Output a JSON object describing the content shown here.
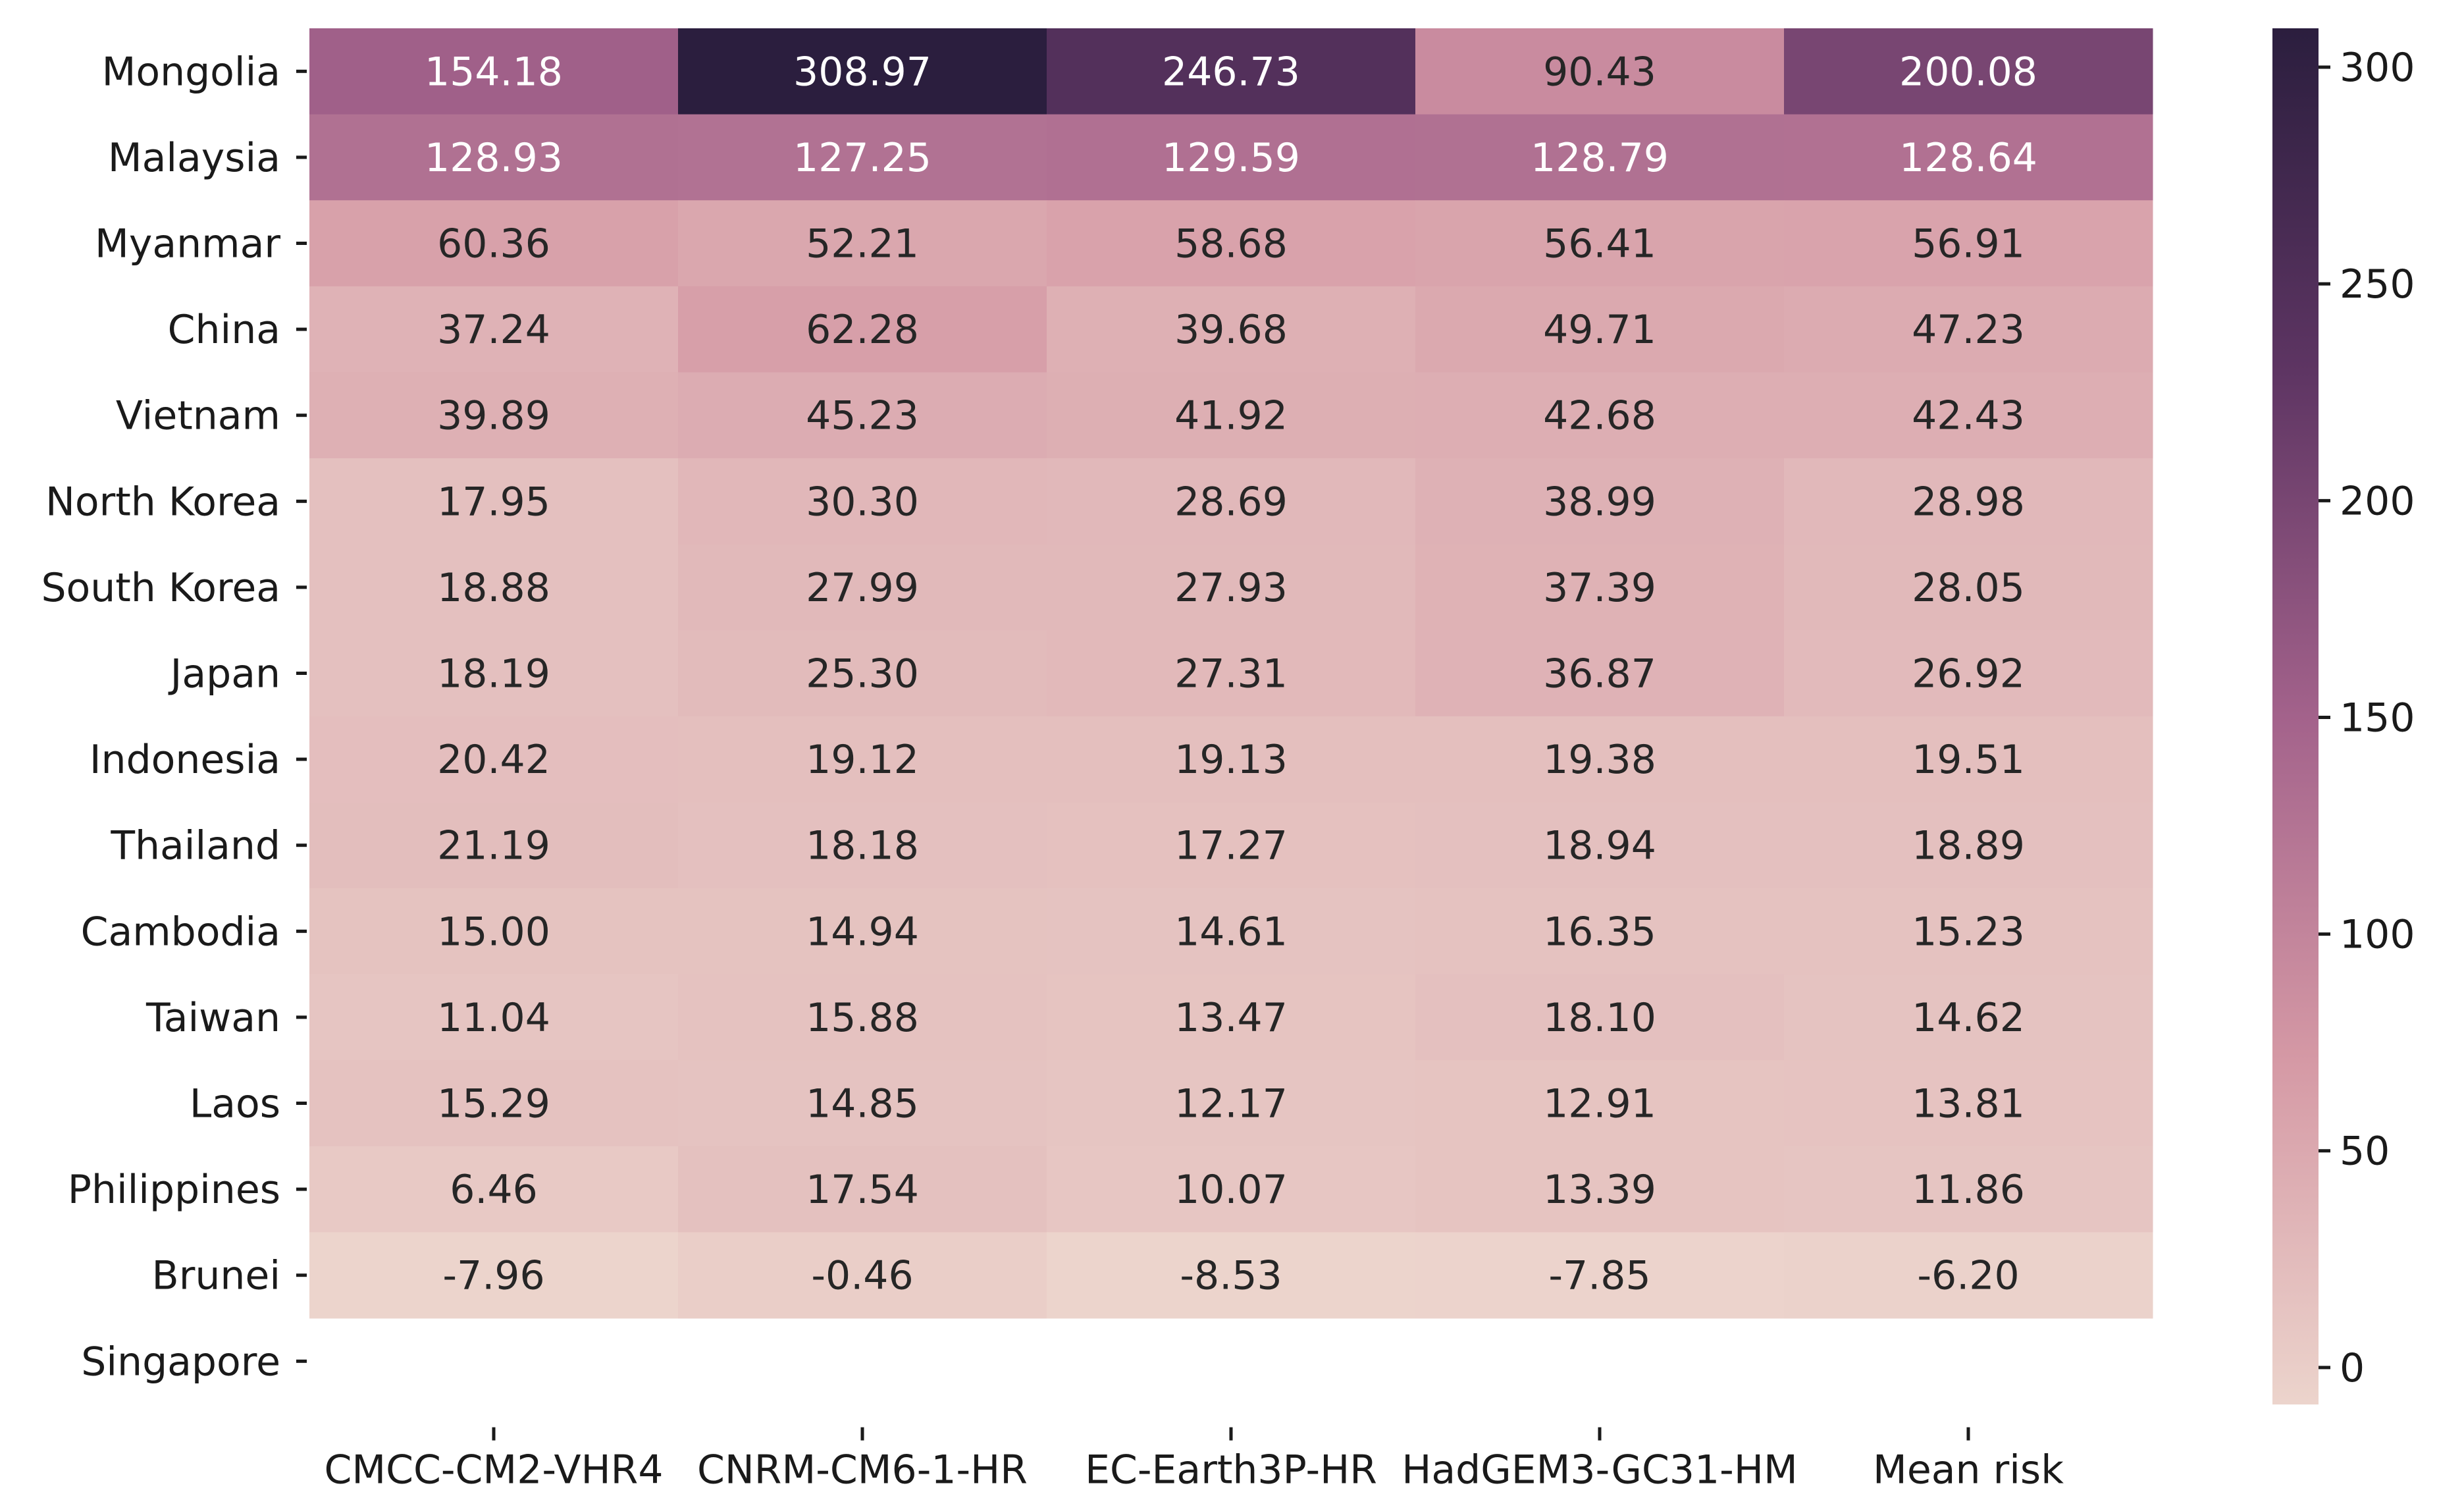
{
  "chart_data": {
    "type": "heatmap",
    "title": "",
    "xlabel": "",
    "ylabel": "",
    "columns": [
      "CMCC-CM2-VHR4",
      "CNRM-CM6-1-HR",
      "EC-Earth3P-HR",
      "HadGEM3-GC31-HM",
      "Mean risk"
    ],
    "rows": [
      "Mongolia",
      "Malaysia",
      "Myanmar",
      "China",
      "Vietnam",
      "North Korea",
      "South Korea",
      "Japan",
      "Indonesia",
      "Thailand",
      "Cambodia",
      "Taiwan",
      "Laos",
      "Philippines",
      "Brunei",
      "Singapore"
    ],
    "values": [
      [
        154.18,
        308.97,
        246.73,
        90.43,
        200.08
      ],
      [
        128.93,
        127.25,
        129.59,
        128.79,
        128.64
      ],
      [
        60.36,
        52.21,
        58.68,
        56.41,
        56.91
      ],
      [
        37.24,
        62.28,
        39.68,
        49.71,
        47.23
      ],
      [
        39.89,
        45.23,
        41.92,
        42.68,
        42.43
      ],
      [
        17.95,
        30.3,
        28.69,
        38.99,
        28.98
      ],
      [
        18.88,
        27.99,
        27.93,
        37.39,
        28.05
      ],
      [
        18.19,
        25.3,
        27.31,
        36.87,
        26.92
      ],
      [
        20.42,
        19.12,
        19.13,
        19.38,
        19.51
      ],
      [
        21.19,
        18.18,
        17.27,
        18.94,
        18.89
      ],
      [
        15.0,
        14.94,
        14.61,
        16.35,
        15.23
      ],
      [
        11.04,
        15.88,
        13.47,
        18.1,
        14.62
      ],
      [
        15.29,
        14.85,
        12.17,
        12.91,
        13.81
      ],
      [
        6.46,
        17.54,
        10.07,
        13.39,
        11.86
      ],
      [
        -7.96,
        -0.46,
        -8.53,
        -7.85,
        -6.2
      ],
      [
        null,
        null,
        null,
        null,
        null
      ]
    ],
    "colorbar": {
      "min": -8.53,
      "max": 308.97,
      "ticks": [
        0,
        50,
        100,
        150,
        200,
        250,
        300
      ],
      "colormap": [
        "#ecd4cc",
        "#d599a5",
        "#a3628b",
        "#5e3563",
        "#2b1e3e"
      ]
    }
  }
}
